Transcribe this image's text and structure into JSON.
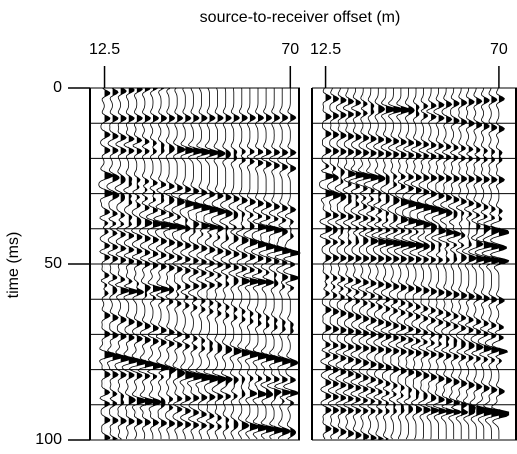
{
  "chart_data": {
    "type": "seismic",
    "title": "source-to-receiver offset (m)",
    "ylabel": "time (ms)",
    "ylim": [
      0,
      100
    ],
    "yticks": [
      0,
      50,
      100
    ],
    "grid_lines": [
      0,
      10,
      20,
      30,
      40,
      50,
      60,
      70,
      80,
      90,
      100
    ],
    "color": "#000000",
    "panels": [
      {
        "xlim": [
          8,
          73
        ],
        "xticks": [
          12.5,
          70
        ]
      },
      {
        "xlim": [
          8,
          76
        ],
        "xticks": [
          12.5,
          70
        ]
      }
    ]
  }
}
